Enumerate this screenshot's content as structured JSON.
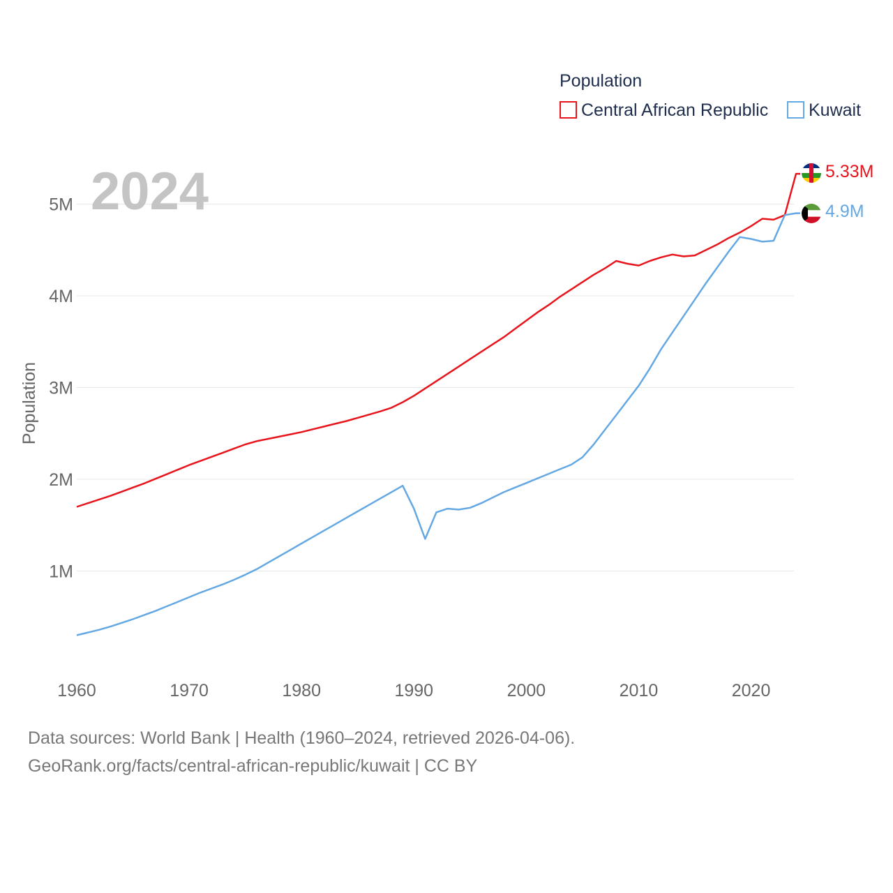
{
  "chart_data": {
    "type": "line",
    "year_label": "2024",
    "ylabel": "Population",
    "xlim": [
      1960,
      2024
    ],
    "ylim": [
      0,
      5500000
    ],
    "x_ticks": [
      {
        "value": 1960,
        "label": "1960"
      },
      {
        "value": 1970,
        "label": "1970"
      },
      {
        "value": 1980,
        "label": "1980"
      },
      {
        "value": 1990,
        "label": "1990"
      },
      {
        "value": 2000,
        "label": "2000"
      },
      {
        "value": 2010,
        "label": "2010"
      },
      {
        "value": 2020,
        "label": "2020"
      }
    ],
    "y_ticks": [
      {
        "value": 1000000,
        "label": "1M"
      },
      {
        "value": 2000000,
        "label": "2M"
      },
      {
        "value": 3000000,
        "label": "3M"
      },
      {
        "value": 4000000,
        "label": "4M"
      },
      {
        "value": 5000000,
        "label": "5M"
      }
    ],
    "legend": {
      "title": "Population",
      "position": "top-right"
    },
    "years": [
      1960,
      1961,
      1962,
      1963,
      1964,
      1965,
      1966,
      1967,
      1968,
      1969,
      1970,
      1971,
      1972,
      1973,
      1974,
      1975,
      1976,
      1977,
      1978,
      1979,
      1980,
      1981,
      1982,
      1983,
      1984,
      1985,
      1986,
      1987,
      1988,
      1989,
      1990,
      1991,
      1992,
      1993,
      1994,
      1995,
      1996,
      1997,
      1998,
      1999,
      2000,
      2001,
      2002,
      2003,
      2004,
      2005,
      2006,
      2007,
      2008,
      2009,
      2010,
      2011,
      2012,
      2013,
      2014,
      2015,
      2016,
      2017,
      2018,
      2019,
      2020,
      2021,
      2022,
      2023,
      2024
    ],
    "series": [
      {
        "name": "Central African Republic",
        "color": "#e8141c",
        "end_label": "5.33M",
        "flag": "central-african-republic-flag-icon",
        "values": [
          1700000,
          1740000,
          1780000,
          1820000,
          1865000,
          1910000,
          1955000,
          2005000,
          2055000,
          2105000,
          2155000,
          2200000,
          2245000,
          2290000,
          2335000,
          2380000,
          2415000,
          2440000,
          2465000,
          2490000,
          2515000,
          2545000,
          2575000,
          2605000,
          2635000,
          2670000,
          2705000,
          2740000,
          2780000,
          2840000,
          2910000,
          2990000,
          3070000,
          3150000,
          3230000,
          3310000,
          3390000,
          3470000,
          3550000,
          3640000,
          3730000,
          3820000,
          3900000,
          3990000,
          4070000,
          4150000,
          4230000,
          4300000,
          4380000,
          4350000,
          4330000,
          4380000,
          4420000,
          4450000,
          4430000,
          4440000,
          4500000,
          4560000,
          4630000,
          4690000,
          4760000,
          4840000,
          4830000,
          4880000,
          5330000
        ]
      },
      {
        "name": "Kuwait",
        "color": "#64a8e3",
        "end_label": "4.9M",
        "flag": "kuwait-flag-icon",
        "values": [
          300000,
          330000,
          360000,
          395000,
          435000,
          475000,
          520000,
          565000,
          615000,
          665000,
          715000,
          765000,
          810000,
          855000,
          905000,
          960000,
          1020000,
          1090000,
          1160000,
          1230000,
          1300000,
          1370000,
          1440000,
          1510000,
          1580000,
          1650000,
          1720000,
          1790000,
          1860000,
          1930000,
          1680000,
          1350000,
          1640000,
          1680000,
          1670000,
          1690000,
          1740000,
          1800000,
          1860000,
          1910000,
          1960000,
          2010000,
          2060000,
          2110000,
          2160000,
          2240000,
          2380000,
          2540000,
          2700000,
          2860000,
          3020000,
          3210000,
          3420000,
          3600000,
          3780000,
          3960000,
          4140000,
          4310000,
          4480000,
          4640000,
          4620000,
          4590000,
          4600000,
          4880000,
          4900000
        ]
      }
    ]
  },
  "source": {
    "line1": "Data sources: World Bank | Health (1960–2024, retrieved 2026-04-06).",
    "line2": "GeoRank.org/facts/central-african-republic/kuwait | CC BY"
  }
}
